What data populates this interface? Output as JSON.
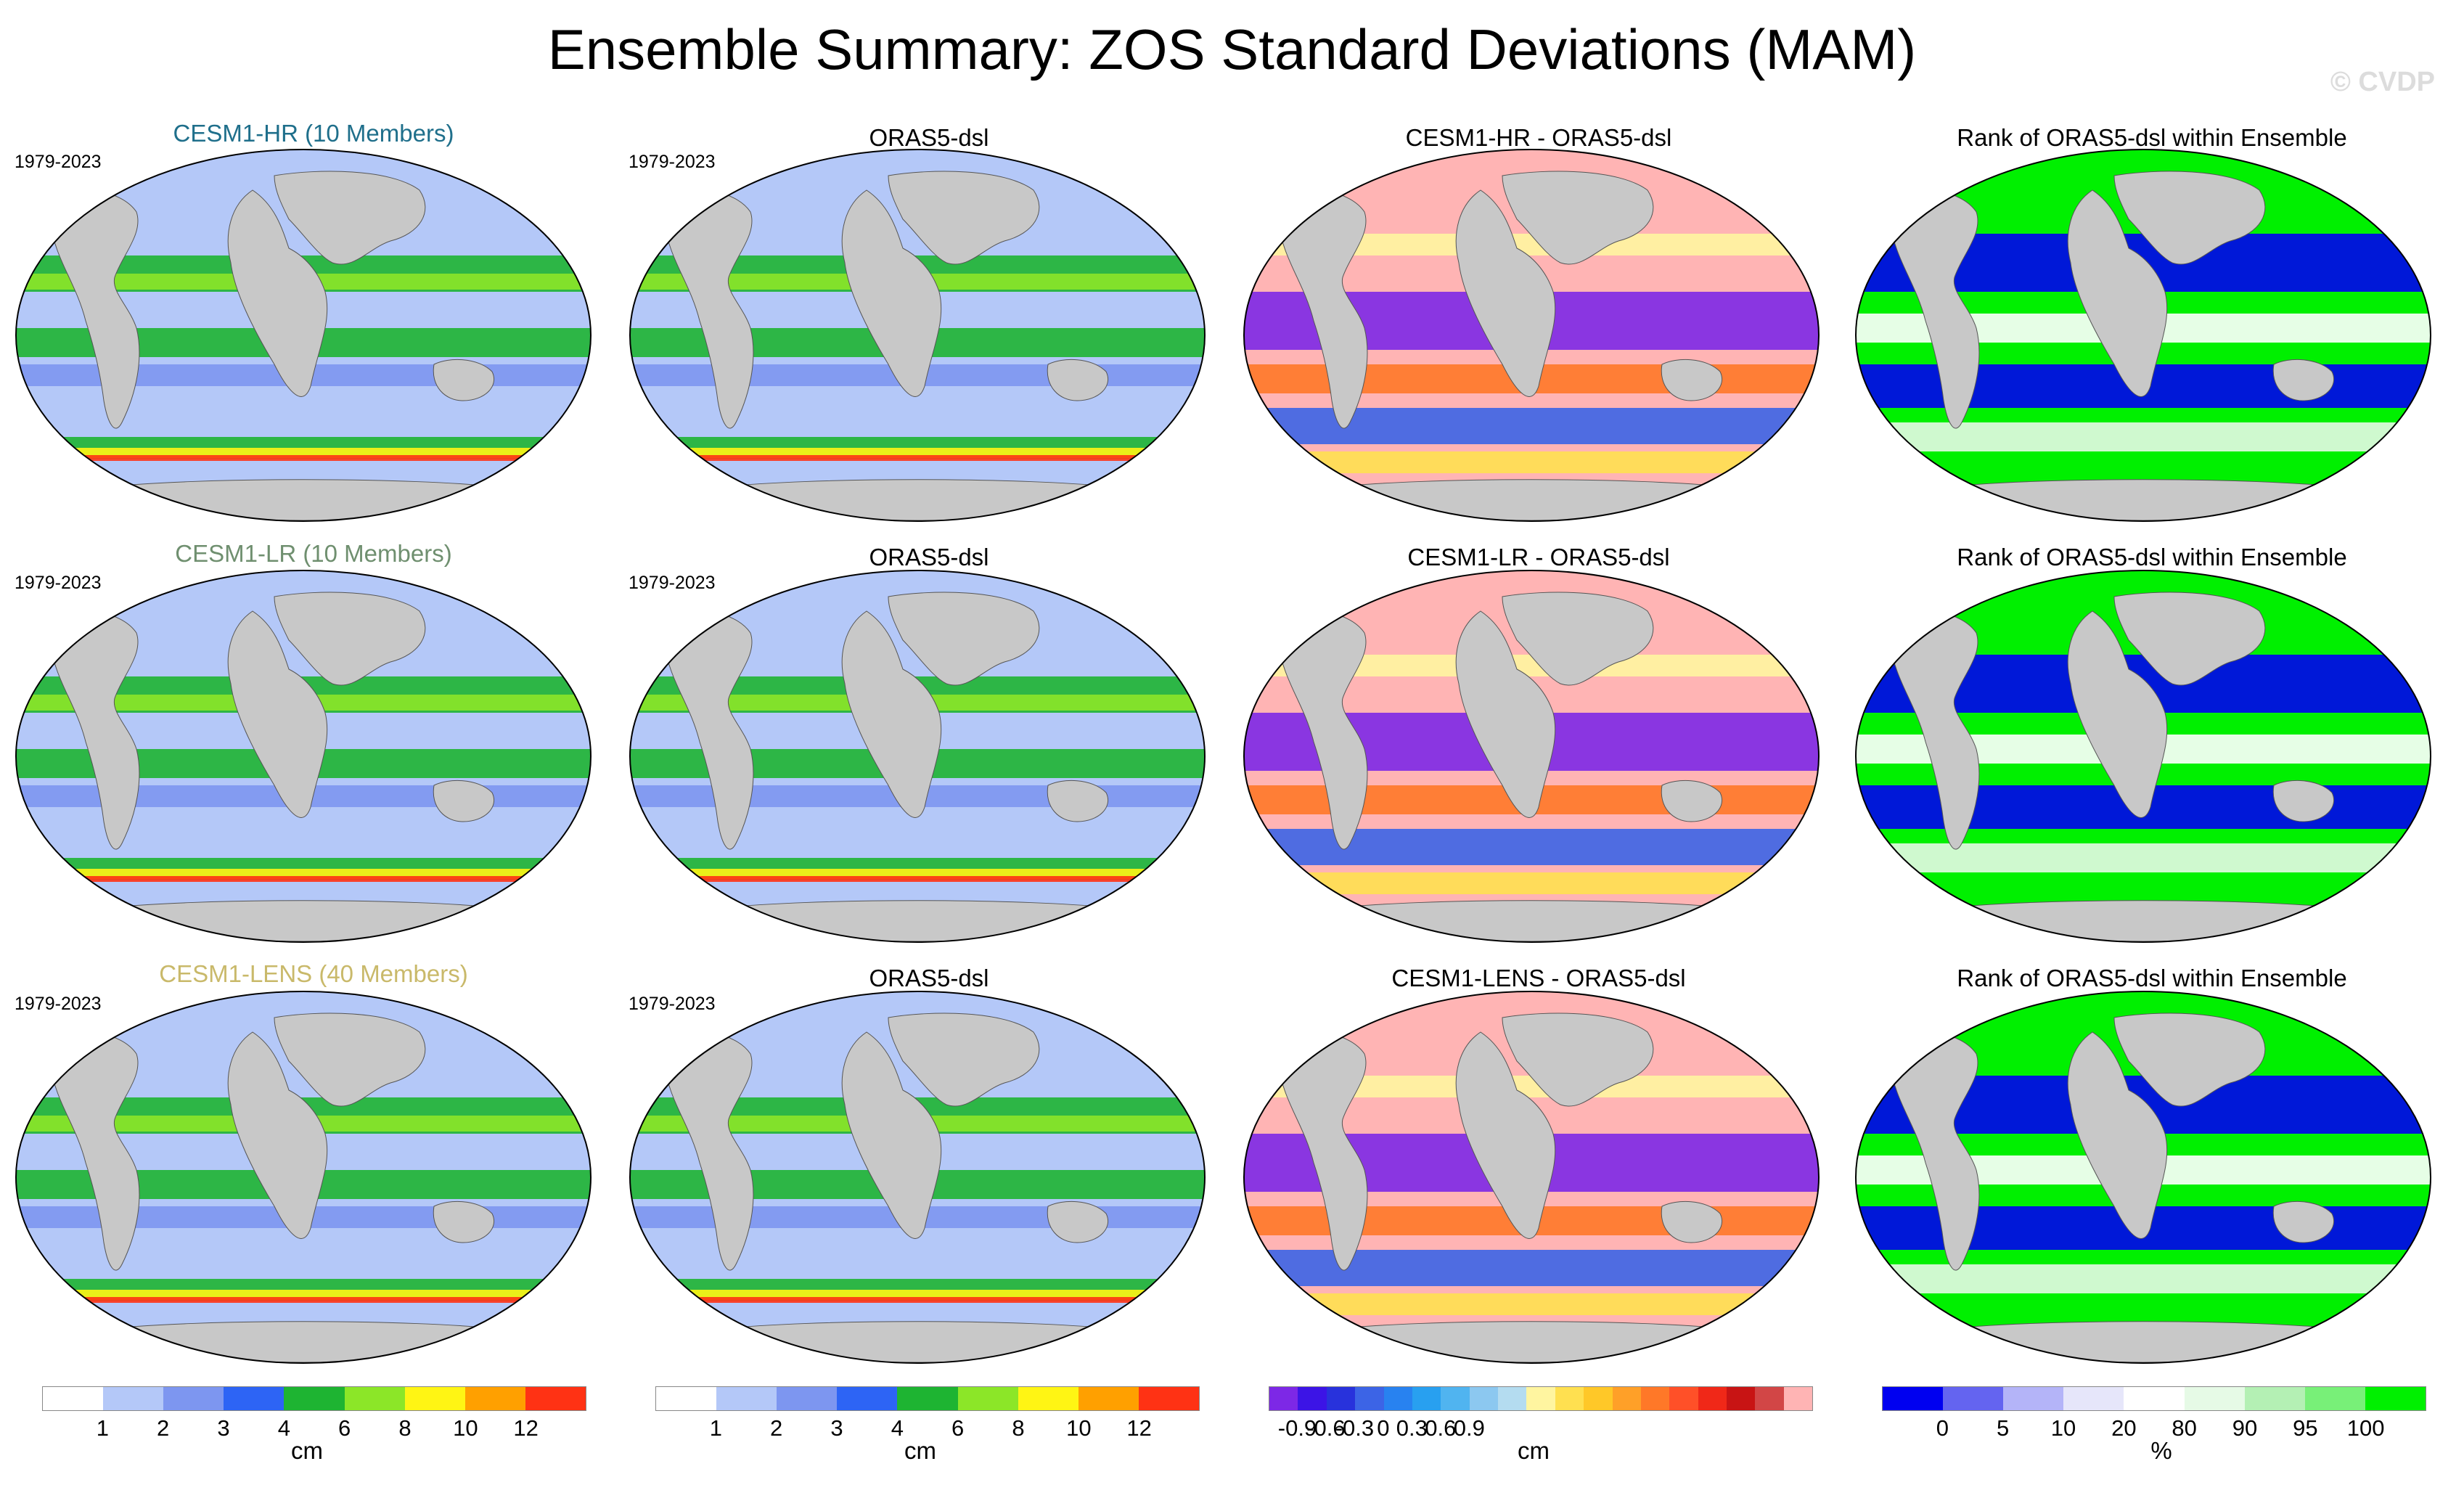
{
  "figure": {
    "title": "Ensemble Summary: ZOS Standard Deviations (MAM)",
    "watermark": "© CVDP"
  },
  "rows": [
    {
      "model_title": "CESM1-HR (10 Members)",
      "model_title_color": "#1f6f8b",
      "model_period": "1979-2023",
      "obs_title": "ORAS5-dsl",
      "obs_period": "1979-2023",
      "diff_title": "CESM1-HR - ORAS5-dsl",
      "rank_title": "Rank of ORAS5-dsl within Ensemble"
    },
    {
      "model_title": "CESM1-LR (10 Members)",
      "model_title_color": "#6f8f6f",
      "model_period": "1979-2023",
      "obs_title": "ORAS5-dsl",
      "obs_period": "1979-2023",
      "diff_title": "CESM1-LR - ORAS5-dsl",
      "rank_title": "Rank of ORAS5-dsl within Ensemble"
    },
    {
      "model_title": "CESM1-LENS (40 Members)",
      "model_title_color": "#c9b96a",
      "model_period": "1979-2023",
      "obs_title": "ORAS5-dsl",
      "obs_period": "1979-2023",
      "diff_title": "CESM1-LENS - ORAS5-dsl",
      "rank_title": "Rank of ORAS5-dsl within Ensemble"
    }
  ],
  "colorbars": {
    "sd": {
      "colors": [
        "#ffffff",
        "#b4c8f8",
        "#7d96f0",
        "#2d64f5",
        "#1eb432",
        "#8ce628",
        "#fff514",
        "#ffa000",
        "#ff3214"
      ],
      "ticks": [
        "1",
        "2",
        "3",
        "4",
        "6",
        "8",
        "10",
        "12"
      ],
      "unit": "cm"
    },
    "diff": {
      "colors": [
        "#7d28e6",
        "#3c14e6",
        "#2832dc",
        "#3c64e6",
        "#2882f0",
        "#28a0f0",
        "#50b4f0",
        "#8cc8f0",
        "#b4dcf0",
        "#fff5a0",
        "#ffe050",
        "#ffc828",
        "#ffa028",
        "#ff7828",
        "#ff5028",
        "#f02818",
        "#c81414",
        "#d24646",
        "#ffb4b4"
      ],
      "ticks": [
        "-0.9",
        "-0.6",
        "-0.3",
        "0",
        "0.3",
        "0.6",
        "0.9"
      ],
      "unit": "cm"
    },
    "rank": {
      "colors": [
        "#0000f0",
        "#6464f0",
        "#b4b4f8",
        "#e6e6fa",
        "#ffffff",
        "#e6fae6",
        "#b4f0b4",
        "#78f078",
        "#00f000"
      ],
      "ticks": [
        "0",
        "5",
        "10",
        "20",
        "80",
        "90",
        "95",
        "100"
      ],
      "unit": "%"
    }
  },
  "colors": {
    "land": "#c8c8c8",
    "map_border": "#000000"
  }
}
